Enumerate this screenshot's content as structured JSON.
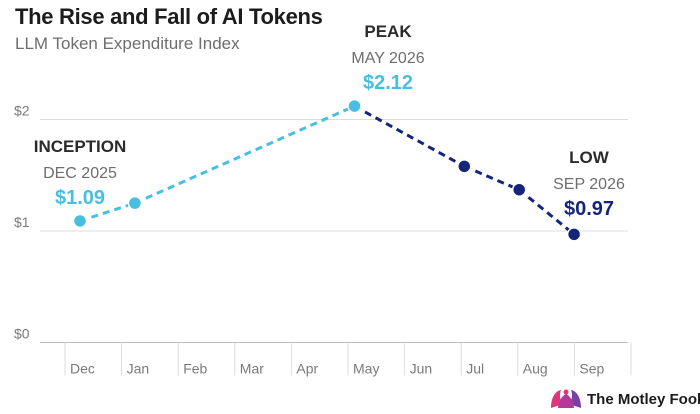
{
  "header": {
    "title": "The Rise and Fall of AI Tokens",
    "subtitle": "LLM Token Expenditure Index"
  },
  "brand": {
    "name": "The Motley Fool",
    "icon": "jester-cap-icon"
  },
  "colors": {
    "rising": "#48bfe0",
    "falling": "#15267a",
    "grid": "#dcdcdc",
    "axis_text": "#7a7a7a"
  },
  "chart_data": {
    "type": "line",
    "categories": [
      "Dec",
      "Jan",
      "Feb",
      "Mar",
      "Apr",
      "May",
      "Jun",
      "Jul",
      "Aug",
      "Sep"
    ],
    "y_ticks": [
      0,
      1,
      2
    ],
    "y_tick_labels": [
      "$0",
      "$1",
      "$2"
    ],
    "ylim": [
      0,
      2.3
    ],
    "grid": true,
    "points": [
      {
        "month": "Dec",
        "value": 1.09,
        "phase": "rising"
      },
      {
        "month": "Jan",
        "value": 1.25,
        "phase": "rising"
      },
      {
        "month": "May",
        "value": 2.12,
        "phase": "peak"
      },
      {
        "month": "Jul",
        "value": 1.58,
        "phase": "falling"
      },
      {
        "month": "Aug",
        "value": 1.37,
        "phase": "falling"
      },
      {
        "month": "Sep",
        "value": 0.97,
        "phase": "falling"
      }
    ],
    "annotations": [
      {
        "point": 0,
        "label": "INCEPTION",
        "date": "DEC 2025",
        "value": "$1.09"
      },
      {
        "point": 2,
        "label": "PEAK",
        "date": "MAY 2026",
        "value": "$2.12"
      },
      {
        "point": 5,
        "label": "LOW",
        "date": "SEP 2026",
        "value": "$0.97"
      }
    ]
  }
}
